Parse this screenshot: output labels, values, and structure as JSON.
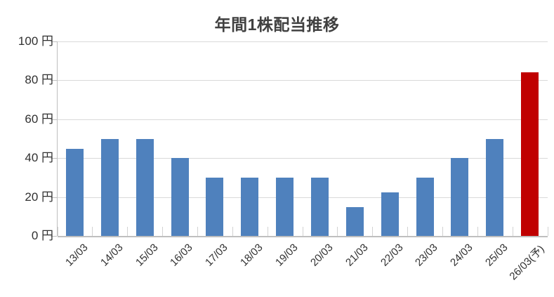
{
  "chart_data": {
    "type": "bar",
    "title": "年間1株配当推移",
    "unit": "円",
    "categories": [
      "13/03",
      "14/03",
      "15/03",
      "16/03",
      "17/03",
      "18/03",
      "19/03",
      "20/03",
      "21/03",
      "22/03",
      "23/03",
      "24/03",
      "25/03",
      "26/03(予)"
    ],
    "values": [
      45,
      50,
      50,
      40,
      30,
      30,
      30,
      30,
      15,
      22.5,
      30,
      40,
      50,
      84
    ],
    "forecast_index": 13,
    "ylim": [
      0,
      100
    ],
    "y_tick_step": 20,
    "y_tick_labels": [
      "0 円",
      "20 円",
      "40 円",
      "60 円",
      "80 円",
      "100 円"
    ],
    "grid": true,
    "legend": "none",
    "colors": {
      "bar_default": "#4F81BD",
      "bar_forecast": "#C00000",
      "gridline": "#D9D9D9",
      "axis": "#BFBFBF",
      "title_text": "#404040",
      "label_text": "#303030"
    }
  }
}
